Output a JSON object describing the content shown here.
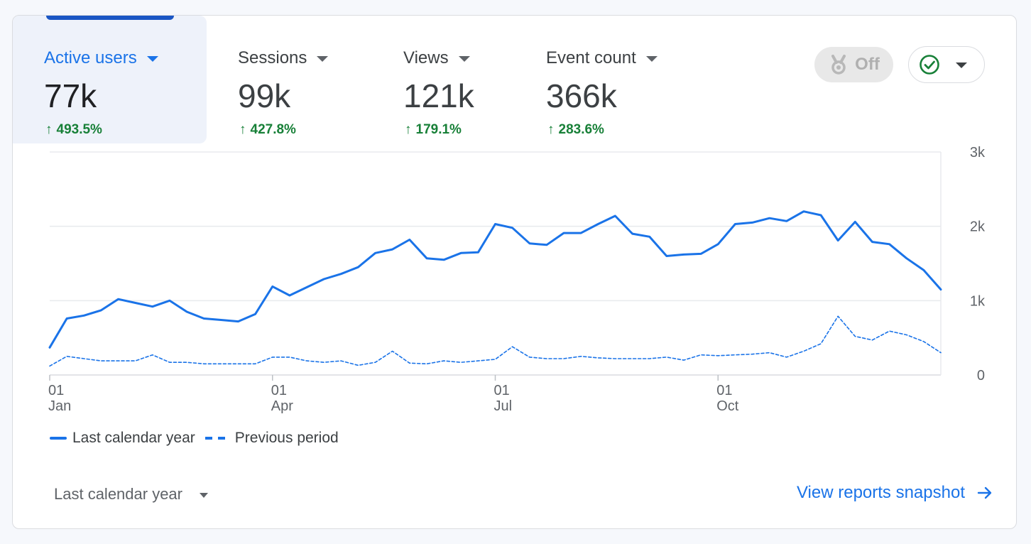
{
  "metrics": [
    {
      "label": "Active users",
      "value": "77k",
      "change": "493.5%",
      "active": true
    },
    {
      "label": "Sessions",
      "value": "99k",
      "change": "427.8%",
      "active": false
    },
    {
      "label": "Views",
      "value": "121k",
      "change": "179.1%",
      "active": false
    },
    {
      "label": "Event count",
      "value": "366k",
      "change": "283.6%",
      "active": false
    }
  ],
  "toggle": {
    "label": "Off",
    "icon": "medal-icon"
  },
  "status": {
    "icon": "check-circle-icon"
  },
  "colors": {
    "accent": "#1a73e8",
    "positive": "#188038",
    "grid": "#e8eaed"
  },
  "legend": {
    "current": "Last calendar year",
    "previous": "Previous period"
  },
  "footer": {
    "range_label": "Last calendar year",
    "link_label": "View reports snapshot"
  },
  "chart_data": {
    "type": "line",
    "title": "",
    "xlabel": "",
    "ylabel": "",
    "ylim": [
      0,
      3000
    ],
    "y_ticks": [
      "0",
      "1k",
      "2k",
      "3k"
    ],
    "x_ticks": [
      {
        "day": "01",
        "month": "Jan",
        "week": 0
      },
      {
        "day": "01",
        "month": "Apr",
        "week": 13
      },
      {
        "day": "01",
        "month": "Jul",
        "week": 26
      },
      {
        "day": "01",
        "month": "Oct",
        "week": 39
      }
    ],
    "x_range": [
      0,
      52
    ],
    "series": [
      {
        "name": "Last calendar year",
        "style": "solid",
        "values": [
          370,
          760,
          800,
          870,
          1020,
          970,
          920,
          1000,
          850,
          760,
          740,
          720,
          820,
          1190,
          1070,
          1180,
          1290,
          1360,
          1450,
          1640,
          1690,
          1820,
          1570,
          1550,
          1640,
          1650,
          2030,
          1980,
          1770,
          1750,
          1910,
          1910,
          2030,
          2140,
          1900,
          1860,
          1600,
          1620,
          1630,
          1760,
          2030,
          2050,
          2110,
          2070,
          2200,
          2150,
          1810,
          2060,
          1790,
          1760,
          1570,
          1410,
          1150
        ]
      },
      {
        "name": "Previous period",
        "style": "dashed",
        "values": [
          120,
          250,
          220,
          190,
          190,
          190,
          270,
          170,
          170,
          150,
          150,
          150,
          150,
          240,
          240,
          190,
          170,
          190,
          130,
          170,
          320,
          160,
          150,
          190,
          170,
          190,
          210,
          380,
          240,
          220,
          220,
          250,
          230,
          220,
          220,
          220,
          240,
          200,
          270,
          260,
          270,
          280,
          300,
          240,
          320,
          420,
          790,
          520,
          470,
          590,
          540,
          450,
          300
        ]
      }
    ]
  }
}
